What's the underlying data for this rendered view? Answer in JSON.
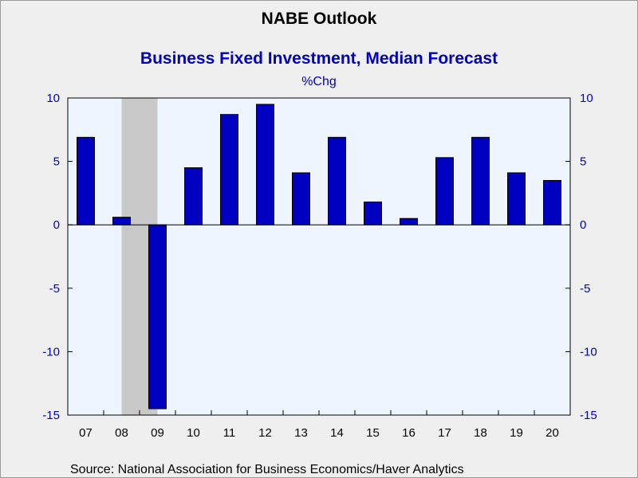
{
  "header": {
    "title": "NABE Outlook"
  },
  "chart_data": {
    "type": "bar",
    "title": "Business Fixed Investment, Median Forecast",
    "units": "%Chg",
    "categories": [
      "07",
      "08",
      "09",
      "10",
      "11",
      "12",
      "13",
      "14",
      "15",
      "16",
      "17",
      "18",
      "19",
      "20"
    ],
    "values": [
      6.9,
      0.6,
      -14.5,
      4.5,
      8.7,
      9.5,
      4.1,
      6.9,
      1.8,
      0.5,
      5.3,
      6.9,
      4.1,
      3.5
    ],
    "ylim": [
      -15,
      10
    ],
    "yticks": [
      10,
      5,
      0,
      -5,
      -10,
      -15
    ],
    "ytick_labels": [
      "10",
      "5",
      "0",
      "-5",
      "-10",
      "-15"
    ],
    "recession_shading": {
      "from": "08",
      "to": "09"
    },
    "grid": false,
    "legend": "none",
    "colors": {
      "bar": "#0000c0",
      "bar_outline": "#000000",
      "text": "#0000c0",
      "plot_background": "#eef5fe",
      "recession": "#c8c8c8"
    }
  },
  "footer": {
    "source": "Source:  National Association for Business Economics/Haver Analytics"
  }
}
